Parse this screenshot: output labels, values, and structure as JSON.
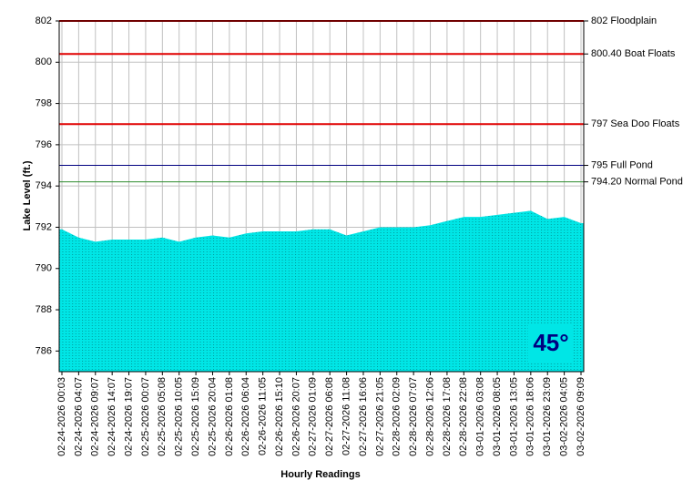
{
  "chart_data": {
    "type": "area",
    "y_axis_label": "Lake Level (ft.)",
    "x_axis_label": "Hourly Readings",
    "categories": [
      "02-24-2026 00:03",
      "02-24-2026 04:07",
      "02-24-2026 09:07",
      "02-24-2026 14:07",
      "02-24-2026 19:07",
      "02-25-2026 00:07",
      "02-25-2026 05:08",
      "02-25-2026 10:05",
      "02-25-2026 15:09",
      "02-25-2026 20:04",
      "02-26-2026 01:08",
      "02-26-2026 06:04",
      "02-26-2026 11:05",
      "02-26-2026 15:10",
      "02-26-2026 20:07",
      "02-27-2026 01:09",
      "02-27-2026 06:08",
      "02-27-2026 11:08",
      "02-27-2026 16:06",
      "02-27-2026 21:05",
      "02-28-2026 02:09",
      "02-28-2026 07:07",
      "02-28-2026 12:06",
      "02-28-2026 17:08",
      "02-28-2026 22:08",
      "03-01-2026 03:08",
      "03-01-2026 08:05",
      "03-01-2026 13:05",
      "03-01-2026 18:06",
      "03-01-2026 23:09",
      "03-02-2026 04:05",
      "03-02-2026 09:09"
    ],
    "values": [
      791.9,
      791.5,
      791.3,
      791.4,
      791.4,
      791.4,
      791.5,
      791.3,
      791.5,
      791.6,
      791.5,
      791.7,
      791.8,
      791.8,
      791.8,
      791.9,
      791.9,
      791.6,
      791.8,
      792.0,
      792.0,
      792.0,
      792.1,
      792.3,
      792.5,
      792.5,
      792.6,
      792.7,
      792.8,
      792.4,
      792.5,
      792.2
    ],
    "color": "#00e6e6",
    "ylim": [
      785,
      802
    ],
    "yticks": [
      786,
      788,
      790,
      792,
      794,
      796,
      798,
      800,
      802
    ],
    "grid": true,
    "reference_lines": [
      {
        "value": 802,
        "label": "802 Floodplain",
        "color": "#e00000"
      },
      {
        "value": 800.4,
        "label": "800.40 Boat Floats",
        "color": "#e00000"
      },
      {
        "value": 797,
        "label": "797 Sea Doo Floats",
        "color": "#e00000"
      },
      {
        "value": 795,
        "label": "795 Full Pond",
        "color": "#000080"
      },
      {
        "value": 794.2,
        "label": "794.20 Normal Pond",
        "color": "#2e8b2e"
      }
    ],
    "badge": "45°"
  }
}
